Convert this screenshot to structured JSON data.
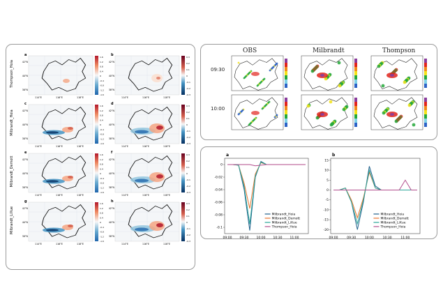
{
  "left_panel": {
    "rows": [
      {
        "label": "Thompson_Hoia",
        "letters": [
          "a",
          "b"
        ]
      },
      {
        "label": "Milbrandt_Hoia",
        "letters": [
          "c",
          "d"
        ]
      },
      {
        "label": "Milbrandt_Demott",
        "letters": [
          "e",
          "f"
        ]
      },
      {
        "label": "Milbrandt_LiXue",
        "letters": [
          "g",
          "h"
        ]
      }
    ],
    "lat_ticks": [
      "42°N",
      "40°N",
      "38°N"
    ],
    "lon_ticks": [
      "114°E",
      "116°E",
      "118°E"
    ],
    "colorbar_a": [
      "1.6",
      "1.2",
      "0.8",
      "0.4",
      "0",
      "-0.4",
      "-0.8",
      "-1.2",
      "-1.6"
    ],
    "colorbar_b": [
      "0.3",
      "0.2",
      "0.1",
      "0",
      "-0.1",
      "-0.2",
      "-0.3"
    ]
  },
  "right_top": {
    "columns": [
      "OBS",
      "Milbrandt",
      "Thompson"
    ],
    "times": [
      "09:30",
      "10:00"
    ],
    "colors": {
      "red": "#e1241c",
      "yellow": "#f2e21a",
      "green": "#24a83a",
      "blue": "#2c62c6",
      "cyan": "#7fd2e6",
      "purple": "#8a3c9c"
    }
  },
  "right_bottom": {
    "chart_data": [
      {
        "type": "line",
        "panel_label": "a",
        "x": [
          "09:00",
          "09:10",
          "09:20",
          "09:30",
          "09:40",
          "09:50",
          "10:00",
          "10:10",
          "10:20",
          "10:30",
          "10:40",
          "10:50",
          "11:00",
          "11:10",
          "11:20"
        ],
        "x_ticks": [
          "09:00",
          "09:30",
          "10:00",
          "10:30",
          "11:00"
        ],
        "y_ticks": [
          "0",
          "-0.02",
          "-0.04",
          "-0.06",
          "-0.08",
          "-0.1"
        ],
        "ylim": [
          -0.11,
          0.01
        ],
        "series": [
          {
            "name": "Milbrandt_Hoia",
            "color": "#1f5f8b",
            "values": [
              0,
              0,
              -0.001,
              -0.04,
              -0.105,
              -0.02,
              0.005,
              0,
              0,
              0,
              0,
              0,
              0,
              0,
              0
            ]
          },
          {
            "name": "Milbrandt_Demott",
            "color": "#e8742c",
            "values": [
              0,
              0,
              -0.001,
              -0.03,
              -0.07,
              -0.015,
              0.003,
              0,
              0,
              0,
              0,
              0,
              0,
              0,
              0
            ]
          },
          {
            "name": "Milbrandt_LiXue",
            "color": "#2aa598",
            "values": [
              0,
              0,
              -0.001,
              -0.035,
              -0.095,
              -0.018,
              0.004,
              0,
              0,
              0,
              0,
              0,
              0,
              0,
              0
            ]
          },
          {
            "name": "Thompson_Hoia",
            "color": "#b04a8a",
            "values": [
              0,
              0,
              0,
              0,
              0,
              -0.002,
              -0.001,
              0,
              0,
              0,
              0,
              0,
              0,
              0,
              0
            ]
          }
        ]
      },
      {
        "type": "line",
        "panel_label": "b",
        "x": [
          "09:00",
          "09:10",
          "09:20",
          "09:30",
          "09:40",
          "09:50",
          "10:00",
          "10:10",
          "10:20",
          "10:30",
          "10:40",
          "10:50",
          "11:00",
          "11:10",
          "11:20"
        ],
        "x_ticks": [
          "09:00",
          "09:30",
          "10:00",
          "10:30",
          "11:00"
        ],
        "y_ticks": [
          "15",
          "10",
          "5",
          "0",
          "-5",
          "-10",
          "-15",
          "-20"
        ],
        "ylim": [
          -22,
          16
        ],
        "series": [
          {
            "name": "Milbrandt_Hoia",
            "color": "#1f5f8b",
            "values": [
              0,
              0,
              1,
              -6,
              -20,
              -6,
              12,
              2,
              0,
              0,
              0,
              0,
              0,
              0,
              0
            ]
          },
          {
            "name": "Milbrandt_Demott",
            "color": "#e8742c",
            "values": [
              0,
              0,
              1,
              -5,
              -14,
              -4,
              9,
              1,
              0,
              0,
              0,
              0,
              0,
              0,
              0
            ]
          },
          {
            "name": "Milbrandt_LiXue",
            "color": "#2aa598",
            "values": [
              0,
              0,
              1,
              -6,
              -17,
              -5,
              10,
              1,
              0,
              0,
              0,
              0,
              0,
              0,
              0
            ]
          },
          {
            "name": "Thompson_Hoia",
            "color": "#b04a8a",
            "values": [
              0,
              0,
              0,
              0,
              0,
              0,
              0,
              0,
              0,
              0,
              0,
              0,
              5,
              0,
              0
            ]
          }
        ]
      }
    ]
  }
}
